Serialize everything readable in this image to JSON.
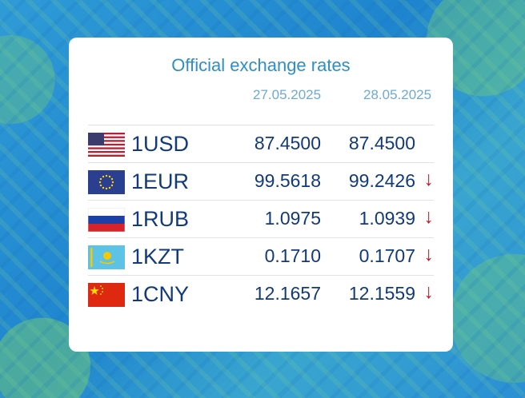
{
  "title": "Official exchange rates",
  "dates": [
    "27.05.2025",
    "28.05.2025"
  ],
  "rates": [
    {
      "code": "1USD",
      "flag": "us-flag-icon",
      "v1": "87.4500",
      "v2": "87.4500",
      "arrow": ""
    },
    {
      "code": "1EUR",
      "flag": "eu-flag-icon",
      "v1": "99.5618",
      "v2": "99.2426",
      "arrow": "↓"
    },
    {
      "code": "1RUB",
      "flag": "ru-flag-icon",
      "v1": "1.0975",
      "v2": "1.0939",
      "arrow": "↓"
    },
    {
      "code": "1KZT",
      "flag": "kz-flag-icon",
      "v1": "0.1710",
      "v2": "0.1707",
      "arrow": "↓"
    },
    {
      "code": "1CNY",
      "flag": "cn-flag-icon",
      "v1": "12.1657",
      "v2": "12.1559",
      "arrow": "↓"
    }
  ],
  "colors": {
    "accent": "#2d8fc4",
    "text": "#123a78",
    "down_arrow": "#c11a2a"
  }
}
